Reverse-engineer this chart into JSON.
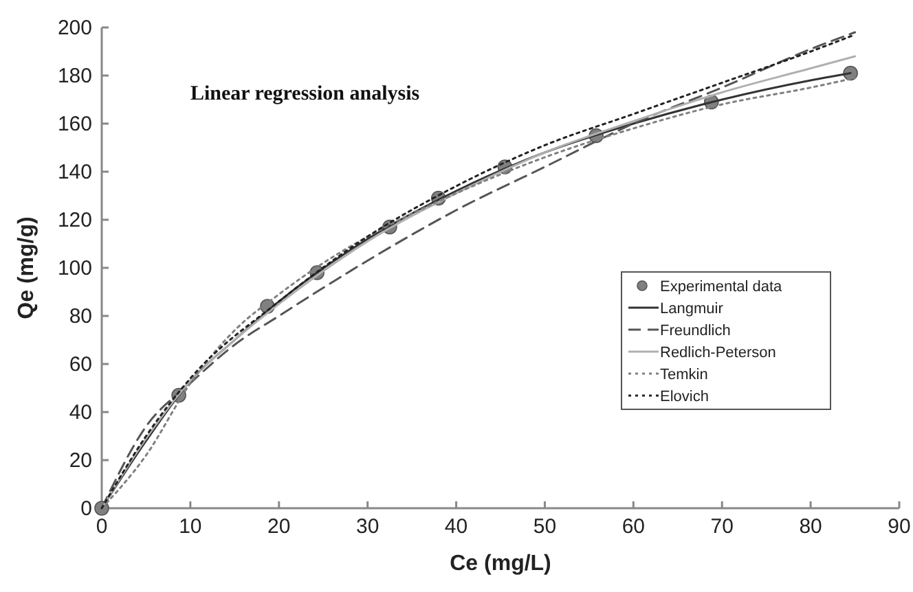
{
  "chart_data": {
    "type": "line",
    "title": "Linear regression analysis",
    "xlabel": "Ce (mg/L)",
    "ylabel": "Qe (mg/g)",
    "xlim": [
      0,
      90
    ],
    "xticks": [
      0,
      10,
      20,
      30,
      40,
      50,
      60,
      70,
      80,
      90
    ],
    "ylim": [
      0,
      200
    ],
    "yticks": [
      0,
      20,
      40,
      60,
      80,
      100,
      120,
      140,
      160,
      180,
      200
    ],
    "grid": false,
    "legend": "right",
    "series": [
      {
        "name": "Experimental data",
        "type": "scatter",
        "marker": "circle",
        "color": "#808080",
        "x": [
          0,
          8.7,
          18.7,
          24.3,
          32.5,
          38,
          45.5,
          55.8,
          68.8,
          84.5
        ],
        "values": [
          0,
          47,
          84,
          98,
          117,
          129,
          142,
          155,
          169,
          181
        ]
      },
      {
        "name": "Langmuir",
        "line_style": "solid",
        "color": "#333333",
        "x": [
          0,
          5,
          10,
          15,
          20,
          30,
          40,
          50,
          60,
          70,
          80,
          84.5
        ],
        "values": [
          0,
          28,
          53,
          70,
          86,
          112,
          132,
          148,
          160,
          170,
          178,
          181
        ]
      },
      {
        "name": "Freundlich",
        "line_style": "dashed",
        "color": "#555555",
        "x": [
          0,
          5,
          10,
          15,
          20,
          30,
          40,
          50,
          60,
          70,
          80,
          85
        ],
        "values": [
          0,
          34,
          52,
          68,
          80,
          103,
          124,
          142,
          160,
          175,
          191,
          198
        ]
      },
      {
        "name": "Redlich-Peterson",
        "line_style": "solid",
        "color": "#b0b0b0",
        "x": [
          0,
          5,
          10,
          15,
          20,
          30,
          40,
          50,
          60,
          70,
          80,
          85
        ],
        "values": [
          0,
          29,
          53,
          70,
          85,
          111,
          131,
          148,
          161,
          173,
          183,
          188
        ]
      },
      {
        "name": "Temkin",
        "line_style": "dotted",
        "color": "#808080",
        "x": [
          0,
          5,
          10,
          15,
          20,
          25,
          30,
          40,
          50,
          60,
          70,
          80,
          85
        ],
        "values": [
          0,
          22,
          52,
          74,
          89,
          102,
          113,
          131,
          146,
          158,
          168,
          175,
          179
        ]
      },
      {
        "name": "Elovich",
        "line_style": "dotted",
        "color": "#222222",
        "x": [
          0,
          5,
          10,
          20,
          30,
          40,
          50,
          60,
          70,
          80,
          85
        ],
        "values": [
          0,
          30,
          54,
          86,
          113,
          134,
          151,
          164,
          177,
          190,
          197
        ]
      }
    ]
  }
}
